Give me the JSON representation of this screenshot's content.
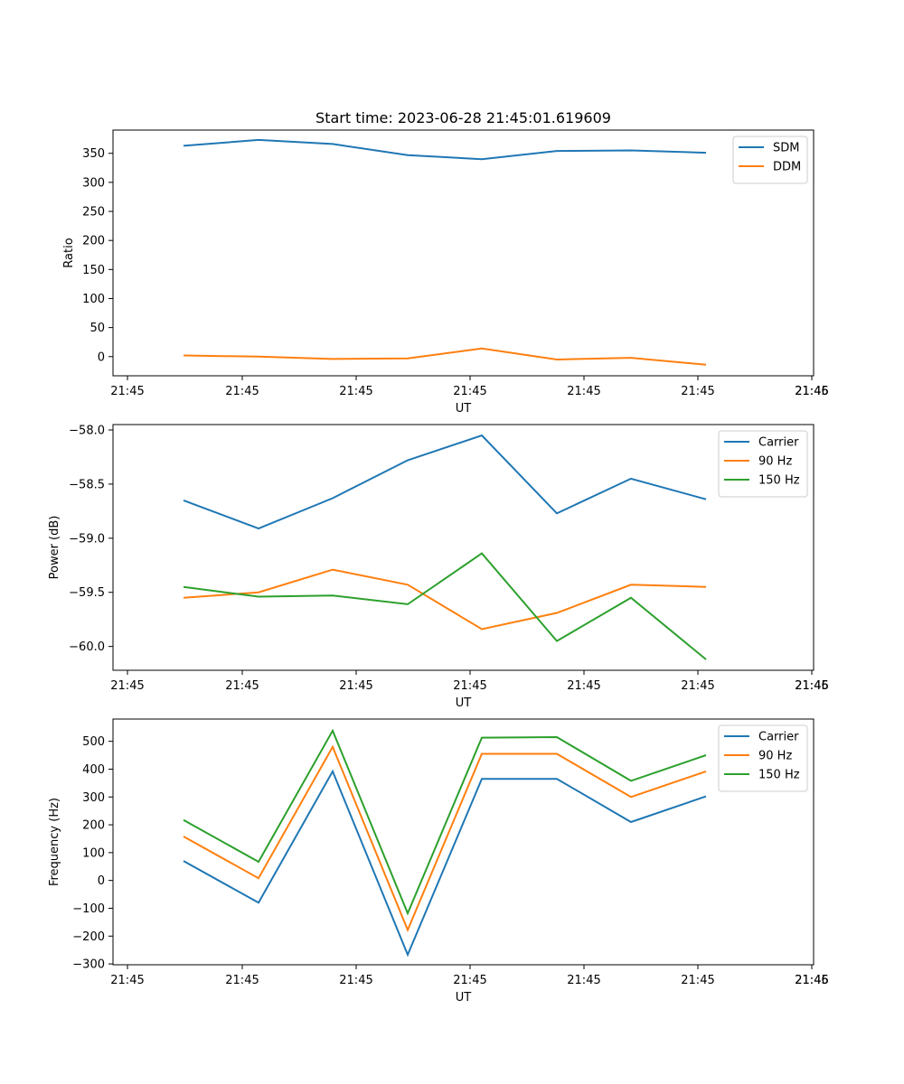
{
  "chart_data": [
    {
      "type": "line",
      "title": "Start time: 2023-06-28 21:45:01.619609",
      "xlabel": "UT",
      "ylabel": "Ratio",
      "xticks": [
        "21:45",
        "21:45",
        "21:45",
        "21:45",
        "21:45",
        "21:45",
        "21:45",
        "21:46"
      ],
      "yticks": [
        "0",
        "50",
        "100",
        "150",
        "200",
        "250",
        "300",
        "350"
      ],
      "ylim": [
        -33,
        390
      ],
      "legend": "top-right",
      "series": [
        {
          "name": "SDM",
          "color": "#1f77b4",
          "values": [
            363,
            373,
            366,
            347,
            340,
            354,
            355,
            351
          ]
        },
        {
          "name": "DDM",
          "color": "#ff7f0e",
          "values": [
            2,
            0,
            -4,
            -3,
            14,
            -5,
            -2,
            -14
          ]
        }
      ]
    },
    {
      "type": "line",
      "title": "",
      "xlabel": "UT",
      "ylabel": "Power (dB)",
      "xticks": [
        "21:45",
        "21:45",
        "21:45",
        "21:45",
        "21:45",
        "21:45",
        "21:45",
        "21:46"
      ],
      "yticks": [
        "−58.0",
        "−58.5",
        "−59.0",
        "−59.5",
        "−60.0"
      ],
      "ylim": [
        -60.22,
        -57.95
      ],
      "legend": "top-right",
      "series": [
        {
          "name": "Carrier",
          "color": "#1f77b4",
          "values": [
            -58.65,
            -58.91,
            -58.63,
            -58.28,
            -58.05,
            -58.77,
            -58.45,
            -58.64
          ]
        },
        {
          "name": "90 Hz",
          "color": "#ff7f0e",
          "values": [
            -59.55,
            -59.5,
            -59.29,
            -59.43,
            -59.84,
            -59.69,
            -59.43,
            -59.45
          ]
        },
        {
          "name": "150 Hz",
          "color": "#2ca02c",
          "values": [
            -59.45,
            -59.54,
            -59.53,
            -59.61,
            -59.14,
            -59.95,
            -59.55,
            -60.12
          ]
        }
      ]
    },
    {
      "type": "line",
      "title": "",
      "xlabel": "UT",
      "ylabel": "Frequency (Hz)",
      "xticks": [
        "21:45",
        "21:45",
        "21:45",
        "21:45",
        "21:45",
        "21:45",
        "21:45",
        "21:46"
      ],
      "yticks": [
        "−300",
        "−200",
        "−100",
        "0",
        "100",
        "200",
        "300",
        "400",
        "500"
      ],
      "ylim": [
        -303,
        580
      ],
      "legend": "top-right",
      "series": [
        {
          "name": "Carrier",
          "color": "#1f77b4",
          "values": [
            70,
            -80,
            392,
            -267,
            365,
            365,
            210,
            302
          ]
        },
        {
          "name": "90 Hz",
          "color": "#ff7f0e",
          "values": [
            158,
            8,
            480,
            -178,
            455,
            455,
            300,
            392
          ]
        },
        {
          "name": "150 Hz",
          "color": "#2ca02c",
          "values": [
            217,
            67,
            538,
            -118,
            513,
            515,
            358,
            450
          ]
        }
      ]
    }
  ]
}
